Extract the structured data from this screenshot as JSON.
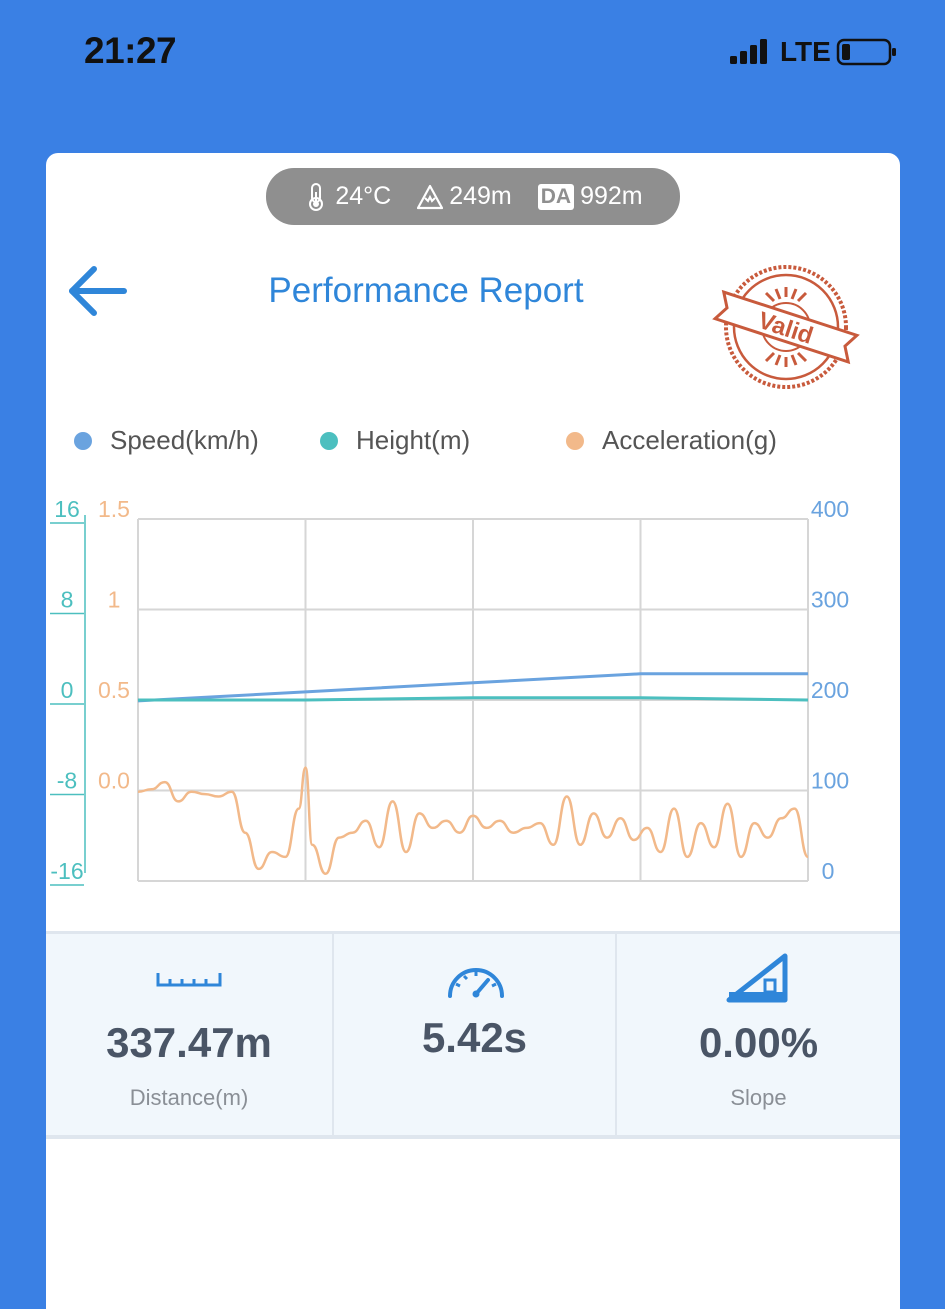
{
  "status_bar": {
    "time": "21:27",
    "network": "LTE"
  },
  "environment": {
    "temperature": "24°C",
    "altitude": "249m",
    "da_badge": "DA",
    "density_altitude": "992m"
  },
  "header": {
    "title": "Performance Report",
    "stamp_text": "Valid"
  },
  "legend": [
    {
      "label": "Speed(km/h)",
      "color": "#6aa3df"
    },
    {
      "label": "Height(m)",
      "color": "#4cbfbf"
    },
    {
      "label": "Acceleration(g)",
      "color": "#f2b98a"
    }
  ],
  "chart_data": {
    "type": "line",
    "y_axis_height": {
      "ticks": [
        "16",
        "8",
        "0",
        "-8",
        "-16"
      ],
      "range": [
        -16,
        16
      ],
      "color": "#4cbfbf"
    },
    "y_axis_acceleration": {
      "ticks": [
        "1.5",
        "1",
        "0.5",
        "0.0"
      ],
      "range": [
        0.0,
        1.5
      ],
      "color": "#f2b98a"
    },
    "y_axis_speed": {
      "ticks": [
        "400",
        "300",
        "200",
        "100",
        "0"
      ],
      "range": [
        0,
        400
      ],
      "color": "#6aa3df"
    },
    "grid": true,
    "series": [
      {
        "name": "Speed(km/h)",
        "axis": "speed",
        "x": [
          0,
          0.25,
          0.5,
          0.75,
          1.0
        ],
        "values": [
          199,
          209,
          219,
          229,
          229
        ]
      },
      {
        "name": "Height(m)",
        "axis": "height",
        "x": [
          0,
          0.25,
          0.5,
          0.75,
          1.0
        ],
        "values": [
          0,
          0,
          0.2,
          0.2,
          0
        ]
      },
      {
        "name": "Acceleration(g)",
        "axis": "acceleration",
        "x": [
          0,
          0.02,
          0.04,
          0.06,
          0.08,
          0.1,
          0.12,
          0.14,
          0.16,
          0.18,
          0.2,
          0.22,
          0.24,
          0.25,
          0.26,
          0.28,
          0.3,
          0.32,
          0.34,
          0.36,
          0.38,
          0.4,
          0.42,
          0.44,
          0.46,
          0.48,
          0.5,
          0.52,
          0.54,
          0.56,
          0.58,
          0.6,
          0.62,
          0.64,
          0.66,
          0.68,
          0.7,
          0.72,
          0.74,
          0.76,
          0.78,
          0.8,
          0.82,
          0.84,
          0.86,
          0.88,
          0.9,
          0.92,
          0.94,
          0.96,
          0.98,
          1.0
        ],
        "values": [
          0.37,
          0.38,
          0.41,
          0.33,
          0.37,
          0.36,
          0.35,
          0.37,
          0.2,
          0.05,
          0.12,
          0.1,
          0.3,
          0.47,
          0.15,
          0.03,
          0.18,
          0.2,
          0.25,
          0.14,
          0.33,
          0.12,
          0.28,
          0.22,
          0.25,
          0.2,
          0.27,
          0.22,
          0.25,
          0.2,
          0.22,
          0.24,
          0.15,
          0.35,
          0.15,
          0.28,
          0.18,
          0.26,
          0.17,
          0.22,
          0.12,
          0.3,
          0.1,
          0.24,
          0.14,
          0.32,
          0.1,
          0.24,
          0.18,
          0.26,
          0.3,
          0.1
        ]
      }
    ]
  },
  "stats": [
    {
      "value": "337.47m",
      "label": "Distance(m)",
      "icon": "ruler-icon"
    },
    {
      "value": "5.42s",
      "label": "",
      "icon": "speedometer-icon"
    },
    {
      "value": "0.00%",
      "label": "Slope",
      "icon": "slope-icon"
    }
  ]
}
